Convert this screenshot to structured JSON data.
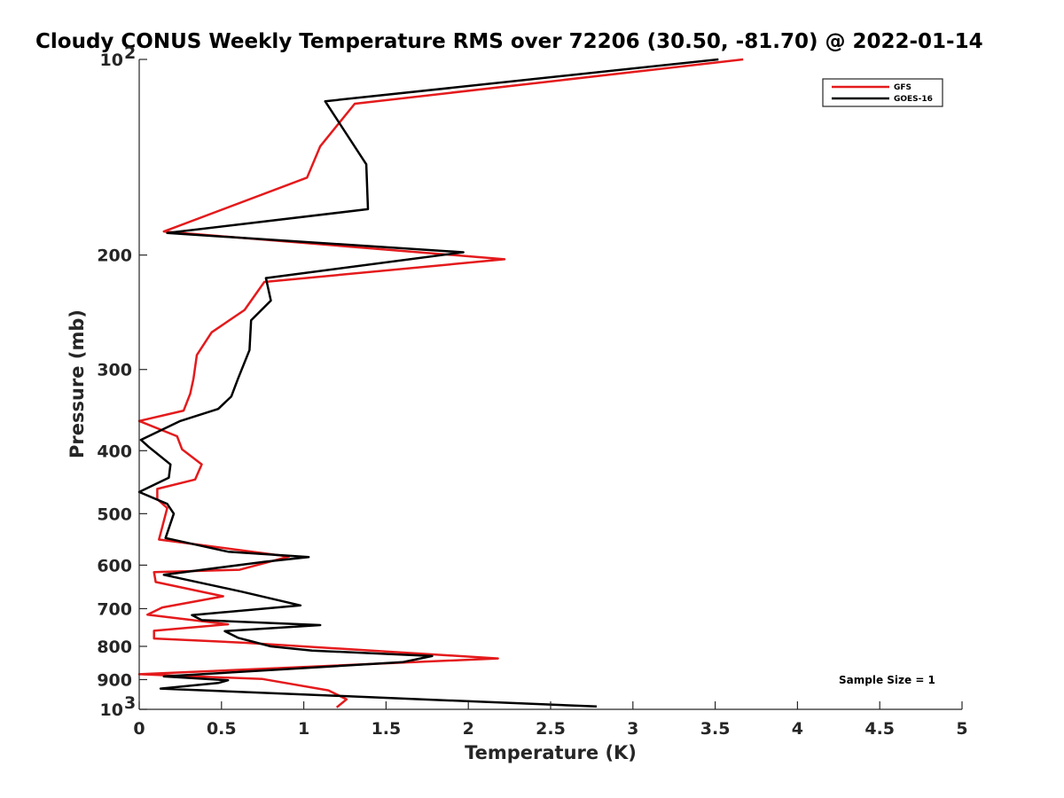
{
  "chart_data": {
    "type": "line",
    "title": "Cloudy CONUS Weekly Temperature RMS over 72206 (30.50, -81.70) @ 2022-01-14",
    "xlabel": "Temperature (K)",
    "ylabel": "Pressure (mb)",
    "xlim": [
      0,
      5
    ],
    "ylim": [
      100,
      1000
    ],
    "yscale": "log",
    "y_reversed": true,
    "x_ticks": [
      0,
      0.5,
      1,
      1.5,
      2,
      2.5,
      3,
      3.5,
      4,
      4.5,
      5
    ],
    "x_tick_labels": [
      "0",
      "0.5",
      "1",
      "1.5",
      "2",
      "2.5",
      "3",
      "3.5",
      "4",
      "4.5",
      "5"
    ],
    "y_ticks": [
      100,
      200,
      300,
      400,
      500,
      600,
      700,
      800,
      900,
      1000
    ],
    "y_tick_labels": [
      {
        "base": "10",
        "exp": "2"
      },
      {
        "base": "200"
      },
      {
        "base": "300"
      },
      {
        "base": "400"
      },
      {
        "base": "500"
      },
      {
        "base": "600"
      },
      {
        "base": "700"
      },
      {
        "base": "800"
      },
      {
        "base": "900"
      },
      {
        "base": "10",
        "exp": "3"
      }
    ],
    "grid": false,
    "legend_position": "top-right",
    "annotation": "Sample Size = 1",
    "series": [
      {
        "name": "GFS",
        "color": "#e41a1c",
        "x": [
          3.67,
          1.31,
          1.1,
          1.02,
          0.15,
          2.22,
          0.76,
          0.64,
          0.44,
          0.35,
          0.33,
          0.31,
          0.27,
          0.0,
          0.23,
          0.26,
          0.38,
          0.34,
          0.11,
          0.11,
          0.17,
          0.12,
          0.91,
          0.61,
          0.09,
          0.1,
          0.51,
          0.14,
          0.05,
          0.54,
          0.09,
          0.09,
          0.65,
          2.18,
          0.0,
          0.75,
          1.15,
          1.26,
          1.2
        ],
        "y": [
          100,
          117,
          136,
          152,
          184,
          203,
          220,
          243,
          263,
          285,
          310,
          327,
          347,
          360,
          380,
          398,
          420,
          443,
          458,
          475,
          490,
          548,
          582,
          610,
          615,
          637,
          670,
          697,
          715,
          740,
          757,
          778,
          790,
          835,
          883,
          898,
          935,
          965,
          993
        ]
      },
      {
        "name": "GOES-16",
        "color": "#000000",
        "x": [
          3.52,
          1.13,
          1.38,
          1.39,
          0.17,
          1.97,
          0.77,
          0.8,
          0.68,
          0.67,
          0.6,
          0.56,
          0.48,
          0.25,
          0.01,
          0.06,
          0.19,
          0.18,
          0.0,
          0.17,
          0.21,
          0.16,
          0.54,
          1.03,
          0.76,
          0.15,
          0.62,
          0.98,
          0.32,
          0.38,
          1.1,
          0.52,
          0.6,
          0.8,
          1.05,
          1.78,
          1.6,
          0.15,
          0.54,
          0.48,
          0.13,
          2.78
        ],
        "y": [
          100,
          116,
          145,
          170,
          185,
          198,
          217,
          235,
          252,
          280,
          310,
          330,
          345,
          360,
          385,
          395,
          420,
          440,
          463,
          483,
          500,
          545,
          572,
          583,
          593,
          621,
          659,
          692,
          716,
          729,
          742,
          758,
          776,
          800,
          812,
          828,
          846,
          890,
          902,
          911,
          929,
          990
        ]
      }
    ]
  }
}
